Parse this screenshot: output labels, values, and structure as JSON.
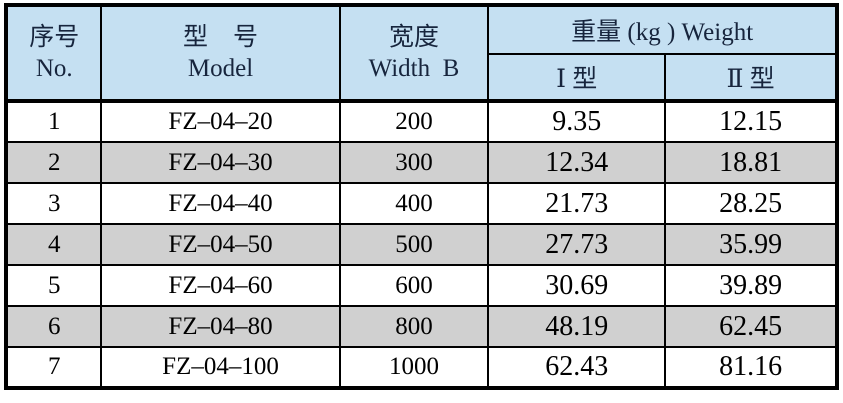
{
  "table": {
    "columns": {
      "no": {
        "zh": "序号",
        "en": "No."
      },
      "model": {
        "zh": "型　号",
        "en": "Model"
      },
      "width": {
        "zh": "宽度",
        "en": "Width  B"
      },
      "weight": {
        "header": "重量 (kg ) Weight",
        "type1": "Ⅰ 型",
        "type2": "Ⅱ 型"
      }
    },
    "rows": [
      {
        "no": "1",
        "model": "FZ–04–20",
        "width": "200",
        "w1": "9.35",
        "w2": "12.15"
      },
      {
        "no": "2",
        "model": "FZ–04–30",
        "width": "300",
        "w1": "12.34",
        "w2": "18.81"
      },
      {
        "no": "3",
        "model": "FZ–04–40",
        "width": "400",
        "w1": "21.73",
        "w2": "28.25"
      },
      {
        "no": "4",
        "model": "FZ–04–50",
        "width": "500",
        "w1": "27.73",
        "w2": "35.99"
      },
      {
        "no": "5",
        "model": "FZ–04–60",
        "width": "600",
        "w1": "30.69",
        "w2": "39.89"
      },
      {
        "no": "6",
        "model": "FZ–04–80",
        "width": "800",
        "w1": "48.19",
        "w2": "62.45"
      },
      {
        "no": "7",
        "model": "FZ–04–100",
        "width": "1000",
        "w1": "62.43",
        "w2": "81.16"
      }
    ]
  },
  "colors": {
    "header_bg": "#c5e0f2",
    "header_text": "#17253d",
    "row_alt_bg": "#d0d0d0",
    "border": "#000000"
  }
}
